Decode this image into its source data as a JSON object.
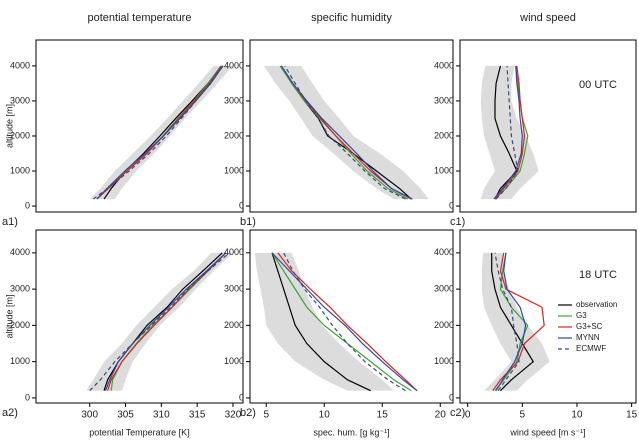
{
  "chart_data": [
    {
      "type": "profile",
      "title": "potential temperature",
      "ylabel": "altitude [m]",
      "panel_label": "a1)",
      "xlim": [
        292.5,
        321.4
      ],
      "ylim": [
        -170,
        4740
      ],
      "yticks": [
        0,
        1000,
        2000,
        3000,
        4000
      ],
      "altitude": [
        200,
        500,
        1000,
        1500,
        2000,
        2500,
        3000,
        3500,
        4000
      ],
      "spread": {
        "color": "#dcdcdc",
        "lower": [
          300,
          301.5,
          303.5,
          306,
          308.5,
          310.8,
          313,
          315.2,
          317.3
        ],
        "upper": [
          303.5,
          304.5,
          306.5,
          309,
          311.2,
          313.3,
          315.6,
          317.8,
          320
        ]
      },
      "series": [
        {
          "color": "#000000",
          "values": [
            302,
            303,
            305,
            307.5,
            309.8,
            312,
            314.3,
            316.5,
            318.6
          ]
        },
        {
          "color": "#3aa635",
          "values": [
            301,
            302.5,
            305,
            307.8,
            310.2,
            312.3,
            314.5,
            316.5,
            318.3
          ]
        },
        {
          "color": "#e3201b",
          "values": [
            301,
            302.6,
            305.2,
            308,
            310.3,
            312.4,
            314.6,
            316.7,
            318.4
          ]
        },
        {
          "color": "#2f48a8",
          "values": [
            301,
            302.4,
            304.9,
            307.7,
            310.3,
            312.6,
            314.8,
            316.9,
            318.6
          ]
        },
        {
          "color": "#3a4a7a",
          "dash": true,
          "values": [
            300.5,
            302.5,
            305.5,
            308.3,
            310.7,
            312.8,
            314.8,
            316.7,
            318.5
          ]
        }
      ]
    },
    {
      "type": "profile",
      "title": "specific humidity",
      "panel_label": "b1)",
      "xlim": [
        3.6,
        21.1
      ],
      "ylim": [
        -170,
        4740
      ],
      "yticks": [
        0,
        1000,
        2000,
        3000,
        4000
      ],
      "altitude": [
        200,
        500,
        1000,
        1500,
        2000,
        2500,
        3000,
        3500,
        4000
      ],
      "spread": {
        "color": "#dcdcdc",
        "lower": [
          16,
          14.5,
          12.5,
          10.8,
          9,
          8,
          7,
          5.8,
          4.8
        ],
        "upper": [
          19,
          18.3,
          16.8,
          14.8,
          12.5,
          11.3,
          10,
          9,
          8
        ]
      },
      "series": [
        {
          "color": "#000000",
          "values": [
            17.5,
            16.5,
            14.5,
            12.5,
            10.3,
            9.5,
            8.3,
            7.2,
            6.3
          ]
        },
        {
          "color": "#3aa635",
          "values": [
            17.2,
            15.5,
            13.7,
            12.3,
            11,
            9.6,
            8.3,
            7.2,
            6.2
          ]
        },
        {
          "color": "#e3201b",
          "values": [
            17.5,
            15.8,
            14,
            12.5,
            11,
            9.7,
            8.4,
            7.3,
            6.3
          ]
        },
        {
          "color": "#2f48a8",
          "values": [
            17.6,
            15.8,
            14.2,
            12.8,
            11.3,
            9.8,
            8.5,
            7.3,
            6.3
          ]
        },
        {
          "color": "#3a4a7a",
          "dash": true,
          "values": [
            17,
            15.2,
            13.5,
            12,
            10.4,
            9.5,
            8.4,
            7.5,
            6.6
          ]
        }
      ]
    },
    {
      "type": "profile",
      "title": "wind speed",
      "panel_label": "c1)",
      "annotation": "00 UTC",
      "xlim": [
        -0.7,
        15.4
      ],
      "ylim": [
        -170,
        4740
      ],
      "yticks": [
        0,
        1000,
        2000,
        3000,
        4000
      ],
      "altitude": [
        200,
        500,
        1000,
        1500,
        2000,
        2500,
        3000,
        3500,
        4000
      ],
      "spread": {
        "color": "#dcdcdc",
        "lower": [
          1.2,
          1.5,
          2.5,
          2,
          1.5,
          1.3,
          1.2,
          1.3,
          1.6
        ],
        "upper": [
          4,
          4.8,
          6.5,
          6,
          5.3,
          4.5,
          4,
          4,
          4.3
        ]
      },
      "series": [
        {
          "color": "#000000",
          "values": [
            2.5,
            3,
            4.5,
            3.8,
            3,
            2.5,
            2.5,
            2.6,
            3
          ]
        },
        {
          "color": "#3aa635",
          "values": [
            2.5,
            3.5,
            4.8,
            5.2,
            5.5,
            5,
            4.8,
            4.6,
            4.4
          ]
        },
        {
          "color": "#e3201b",
          "values": [
            2.5,
            3.3,
            4.6,
            5,
            5.2,
            5,
            4.8,
            4.7,
            4.5
          ]
        },
        {
          "color": "#2f48a8",
          "values": [
            2.4,
            3.2,
            4.4,
            4.9,
            5,
            4.8,
            4.7,
            4.5,
            4.4
          ]
        },
        {
          "color": "#3a4a7a",
          "dash": true,
          "values": [
            2.6,
            3.5,
            4.6,
            4.3,
            4,
            3.9,
            3.8,
            3.7,
            3.6
          ]
        }
      ]
    },
    {
      "type": "profile",
      "xlabel": "potential Temperature [K]",
      "ylabel": "altitude [m]",
      "panel_label": "a2)",
      "xlim": [
        292.5,
        321.4
      ],
      "ylim": [
        -140,
        4630
      ],
      "yticks": [
        0,
        1000,
        2000,
        3000,
        4000
      ],
      "xticks": [
        300,
        305,
        310,
        315,
        320
      ],
      "altitude": [
        200,
        500,
        1000,
        1500,
        2000,
        2500,
        3000,
        3500,
        4000
      ],
      "spread": {
        "color": "#dcdcdc",
        "lower": [
          299.5,
          300.5,
          302,
          304.5,
          306.5,
          309,
          311.5,
          314.5,
          317
        ],
        "upper": [
          304.5,
          305,
          306,
          307.8,
          309.8,
          312.5,
          314.8,
          317.3,
          320
        ]
      },
      "series": [
        {
          "color": "#000000",
          "values": [
            302,
            302.5,
            304,
            306,
            308,
            310.8,
            313,
            315.8,
            318.5
          ]
        },
        {
          "color": "#3aa635",
          "values": [
            303,
            303.2,
            304.5,
            306.5,
            308.8,
            311.5,
            314,
            316.5,
            319
          ]
        },
        {
          "color": "#e3201b",
          "values": [
            302.5,
            303,
            304.5,
            306.6,
            309,
            311.5,
            313.8,
            316.5,
            319
          ]
        },
        {
          "color": "#2f48a8",
          "values": [
            302.2,
            302.8,
            304,
            306,
            308.4,
            311,
            313.5,
            316.3,
            319
          ]
        },
        {
          "color": "#3a4a7a",
          "dash": true,
          "values": [
            300,
            301.5,
            303.5,
            306,
            308.6,
            311.3,
            313.7,
            316.5,
            319.5
          ]
        }
      ]
    },
    {
      "type": "profile",
      "xlabel": "spec. hum. [g kg⁻¹]",
      "panel_label": "b2)",
      "xlim": [
        3.6,
        21.1
      ],
      "ylim": [
        -140,
        4630
      ],
      "yticks": [
        0,
        1000,
        2000,
        3000,
        4000
      ],
      "xticks": [
        5,
        10,
        15,
        20
      ],
      "altitude": [
        200,
        500,
        1000,
        1500,
        2000,
        2500,
        3000,
        3500,
        4000
      ],
      "spread": {
        "color": "#dcdcdc",
        "lower": [
          12,
          10,
          7.5,
          6,
          5,
          4.8,
          4.5,
          4.2,
          4
        ],
        "upper": [
          16,
          15,
          13,
          11.3,
          9.8,
          9,
          8.3,
          7.8,
          7.2
        ]
      },
      "series": [
        {
          "color": "#000000",
          "values": [
            14,
            12,
            10,
            8.5,
            7.5,
            7,
            6.5,
            6,
            5.5
          ]
        },
        {
          "color": "#3aa635",
          "values": [
            17.5,
            16,
            14,
            12,
            10,
            8.5,
            7.5,
            6.5,
            5.5
          ]
        },
        {
          "color": "#e3201b",
          "values": [
            18,
            17,
            15.3,
            13.7,
            12,
            10.5,
            8.8,
            7.2,
            6
          ]
        },
        {
          "color": "#2f48a8",
          "values": [
            18,
            16.8,
            15,
            13.3,
            11.8,
            10,
            8.5,
            7,
            5.5
          ]
        },
        {
          "color": "#3a4a7a",
          "dash": true,
          "values": [
            17,
            15.5,
            13.5,
            12,
            10.7,
            9.6,
            8.3,
            7.3,
            6.5
          ]
        }
      ]
    },
    {
      "type": "profile",
      "xlabel": "wind speed [m s⁻¹]",
      "panel_label": "c2)",
      "annotation": "18 UTC",
      "legend": "right",
      "xlim": [
        -0.7,
        15.4
      ],
      "ylim": [
        -140,
        4630
      ],
      "yticks": [
        0,
        1000,
        2000,
        3000,
        4000
      ],
      "xticks": [
        0,
        5,
        10,
        15
      ],
      "altitude": [
        200,
        500,
        1000,
        1500,
        2000,
        2500,
        3000,
        3500,
        4000
      ],
      "spread": {
        "color": "#dcdcdc",
        "lower": [
          1.5,
          2.5,
          4,
          3,
          2.2,
          1.5,
          1.3,
          1.3,
          1.4
        ],
        "upper": [
          4.5,
          5.5,
          7.5,
          6.8,
          5.5,
          4.5,
          3.8,
          3.3,
          3.2
        ]
      },
      "series": [
        {
          "name": "observation",
          "color": "#000000",
          "values": [
            3,
            4,
            6,
            5,
            4,
            3,
            2.5,
            2.2,
            2.2
          ]
        },
        {
          "name": "G3",
          "color": "#3aa635",
          "values": [
            2.5,
            3.3,
            4.5,
            4.8,
            5.5,
            4,
            3,
            3.2,
            3.5
          ]
        },
        {
          "name": "G3+SC",
          "color": "#e3201b",
          "values": [
            2.3,
            3,
            4.6,
            5.2,
            7,
            6.8,
            3.5,
            3,
            3.3
          ]
        },
        {
          "name": "MYNN",
          "color": "#2f48a8",
          "values": [
            2.6,
            3.2,
            4.3,
            5,
            5.3,
            4.8,
            3.6,
            3.3,
            3.5
          ]
        },
        {
          "name": "ECMWF",
          "color": "#3a4a7a",
          "dash": true,
          "values": [
            2.8,
            3.5,
            4.7,
            4.5,
            4.2,
            4,
            3.2,
            2.8,
            2.5
          ]
        }
      ]
    }
  ]
}
